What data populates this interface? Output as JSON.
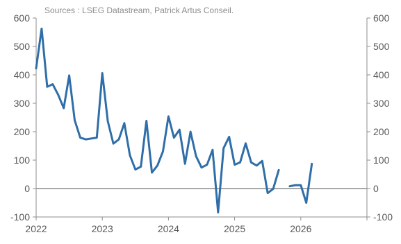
{
  "source_note": "Sources : LSEG Datastream, Patrick Artus Conseil.",
  "chart_data": {
    "type": "line",
    "title": "",
    "xlabel": "",
    "ylabel": "",
    "ylim": [
      -100,
      600
    ],
    "xlim": [
      2022.0,
      2027.0
    ],
    "yticks": [
      -100,
      0,
      100,
      200,
      300,
      400,
      500,
      600
    ],
    "xticks": [
      2022,
      2023,
      2024,
      2025,
      2026
    ],
    "x_tick_labels": [
      "2022",
      "2023",
      "2024",
      "2025",
      "2026"
    ],
    "y_axis_right_duplicate": true,
    "zero_line": true,
    "grid": false,
    "series_color": "#2f6ea8",
    "series": [
      {
        "segments": [
          {
            "x": [
              2022.0,
              2022.083,
              2022.167,
              2022.25,
              2022.333,
              2022.417,
              2022.5,
              2022.583,
              2022.667,
              2022.75,
              2022.833,
              2022.917,
              2023.0,
              2023.083,
              2023.167,
              2023.25,
              2023.333,
              2023.417,
              2023.5,
              2023.583,
              2023.667,
              2023.75,
              2023.833,
              2023.917,
              2024.0,
              2024.083,
              2024.167,
              2024.25,
              2024.333,
              2024.417,
              2024.5,
              2024.583,
              2024.667,
              2024.75,
              2024.833,
              2024.917,
              2025.0,
              2025.083,
              2025.167,
              2025.25,
              2025.333,
              2025.417,
              2025.5,
              2025.583,
              2025.667
            ],
            "y": [
              423,
              563,
              358,
              367,
              330,
              283,
              398,
              240,
              179,
              173,
              176,
              179,
              406,
              237,
              158,
              173,
              230,
              117,
              67,
              77,
              238,
              56,
              81,
              131,
              254,
              179,
              207,
              87,
              200,
              114,
              74,
              84,
              136,
              -84,
              142,
              182,
              84,
              92,
              159,
              92,
              81,
              97,
              -16,
              -1,
              65
            ]
          },
          {
            "x": [
              2025.833,
              2025.917,
              2026.0,
              2026.083,
              2026.167
            ],
            "y": [
              8,
              12,
              12,
              -50,
              87
            ]
          }
        ]
      }
    ]
  }
}
